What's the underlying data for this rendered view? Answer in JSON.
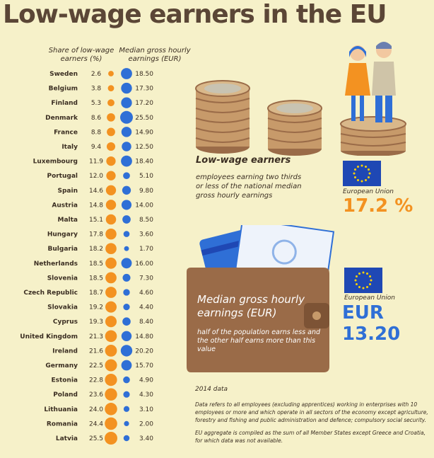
{
  "title": "Low-wage earners in the EU",
  "headers": {
    "share": "Share of low-wage earners (%)",
    "median": "Median gross hourly earnings (EUR)"
  },
  "colors": {
    "share_dot": "#f39221",
    "median_dot": "#2f6fd6",
    "background": "#f6f1c9",
    "wallet": "#9a6b48",
    "eu_flag": "#1f48b4",
    "eu_star": "#ffd200"
  },
  "chart_data": {
    "type": "table",
    "columns": [
      "Share of low-wage earners (%)",
      "Median gross hourly earnings (EUR)"
    ],
    "rows": [
      {
        "country": "Sweden",
        "share": 2.6,
        "median": 18.5
      },
      {
        "country": "Belgium",
        "share": 3.8,
        "median": 17.3
      },
      {
        "country": "Finland",
        "share": 5.3,
        "median": 17.2
      },
      {
        "country": "Denmark",
        "share": 8.6,
        "median": 25.5
      },
      {
        "country": "France",
        "share": 8.8,
        "median": 14.9
      },
      {
        "country": "Italy",
        "share": 9.4,
        "median": 12.5
      },
      {
        "country": "Luxembourg",
        "share": 11.9,
        "median": 18.4
      },
      {
        "country": "Portugal",
        "share": 12.0,
        "median": 5.1
      },
      {
        "country": "Spain",
        "share": 14.6,
        "median": 9.8
      },
      {
        "country": "Austria",
        "share": 14.8,
        "median": 14.0
      },
      {
        "country": "Malta",
        "share": 15.1,
        "median": 8.5
      },
      {
        "country": "Hungary",
        "share": 17.8,
        "median": 3.6
      },
      {
        "country": "Bulgaria",
        "share": 18.2,
        "median": 1.7
      },
      {
        "country": "Netherlands",
        "share": 18.5,
        "median": 16.0
      },
      {
        "country": "Slovenia",
        "share": 18.5,
        "median": 7.3
      },
      {
        "country": "Czech Republic",
        "share": 18.7,
        "median": 4.6
      },
      {
        "country": "Slovakia",
        "share": 19.2,
        "median": 4.4
      },
      {
        "country": "Cyprus",
        "share": 19.3,
        "median": 8.4
      },
      {
        "country": "United Kingdom",
        "share": 21.3,
        "median": 14.8
      },
      {
        "country": "Ireland",
        "share": 21.6,
        "median": 20.2
      },
      {
        "country": "Germany",
        "share": 22.5,
        "median": 15.7
      },
      {
        "country": "Estonia",
        "share": 22.8,
        "median": 4.9
      },
      {
        "country": "Poland",
        "share": 23.6,
        "median": 4.3
      },
      {
        "country": "Lithuania",
        "share": 24.0,
        "median": 3.1
      },
      {
        "country": "Romania",
        "share": 24.4,
        "median": 2.0
      },
      {
        "country": "Latvia",
        "share": 25.5,
        "median": 3.4
      }
    ]
  },
  "low_wage": {
    "title": "Low-wage earners",
    "description": "employees earning two thirds or less of the national median gross hourly earnings"
  },
  "eu_share": {
    "label": "European Union",
    "value": "17.2 %"
  },
  "eu_median": {
    "label": "European Union",
    "value": "EUR 13.20"
  },
  "wallet": {
    "title": "Median gross hourly earnings (EUR)",
    "description": "half of the population earns less and the other half earns more than this value"
  },
  "notes": {
    "year": "2014 data",
    "text1": "Data refers to all employees (excluding apprentices) working in enterprises with 10 employees or more and which operate in all sectors of the economy except agriculture, forestry and fishing and public administration and defence; compulsory social security.",
    "text2": "EU aggregate is compiled as the sum of all Member States except Greece and Croatia, for which data was not available."
  }
}
